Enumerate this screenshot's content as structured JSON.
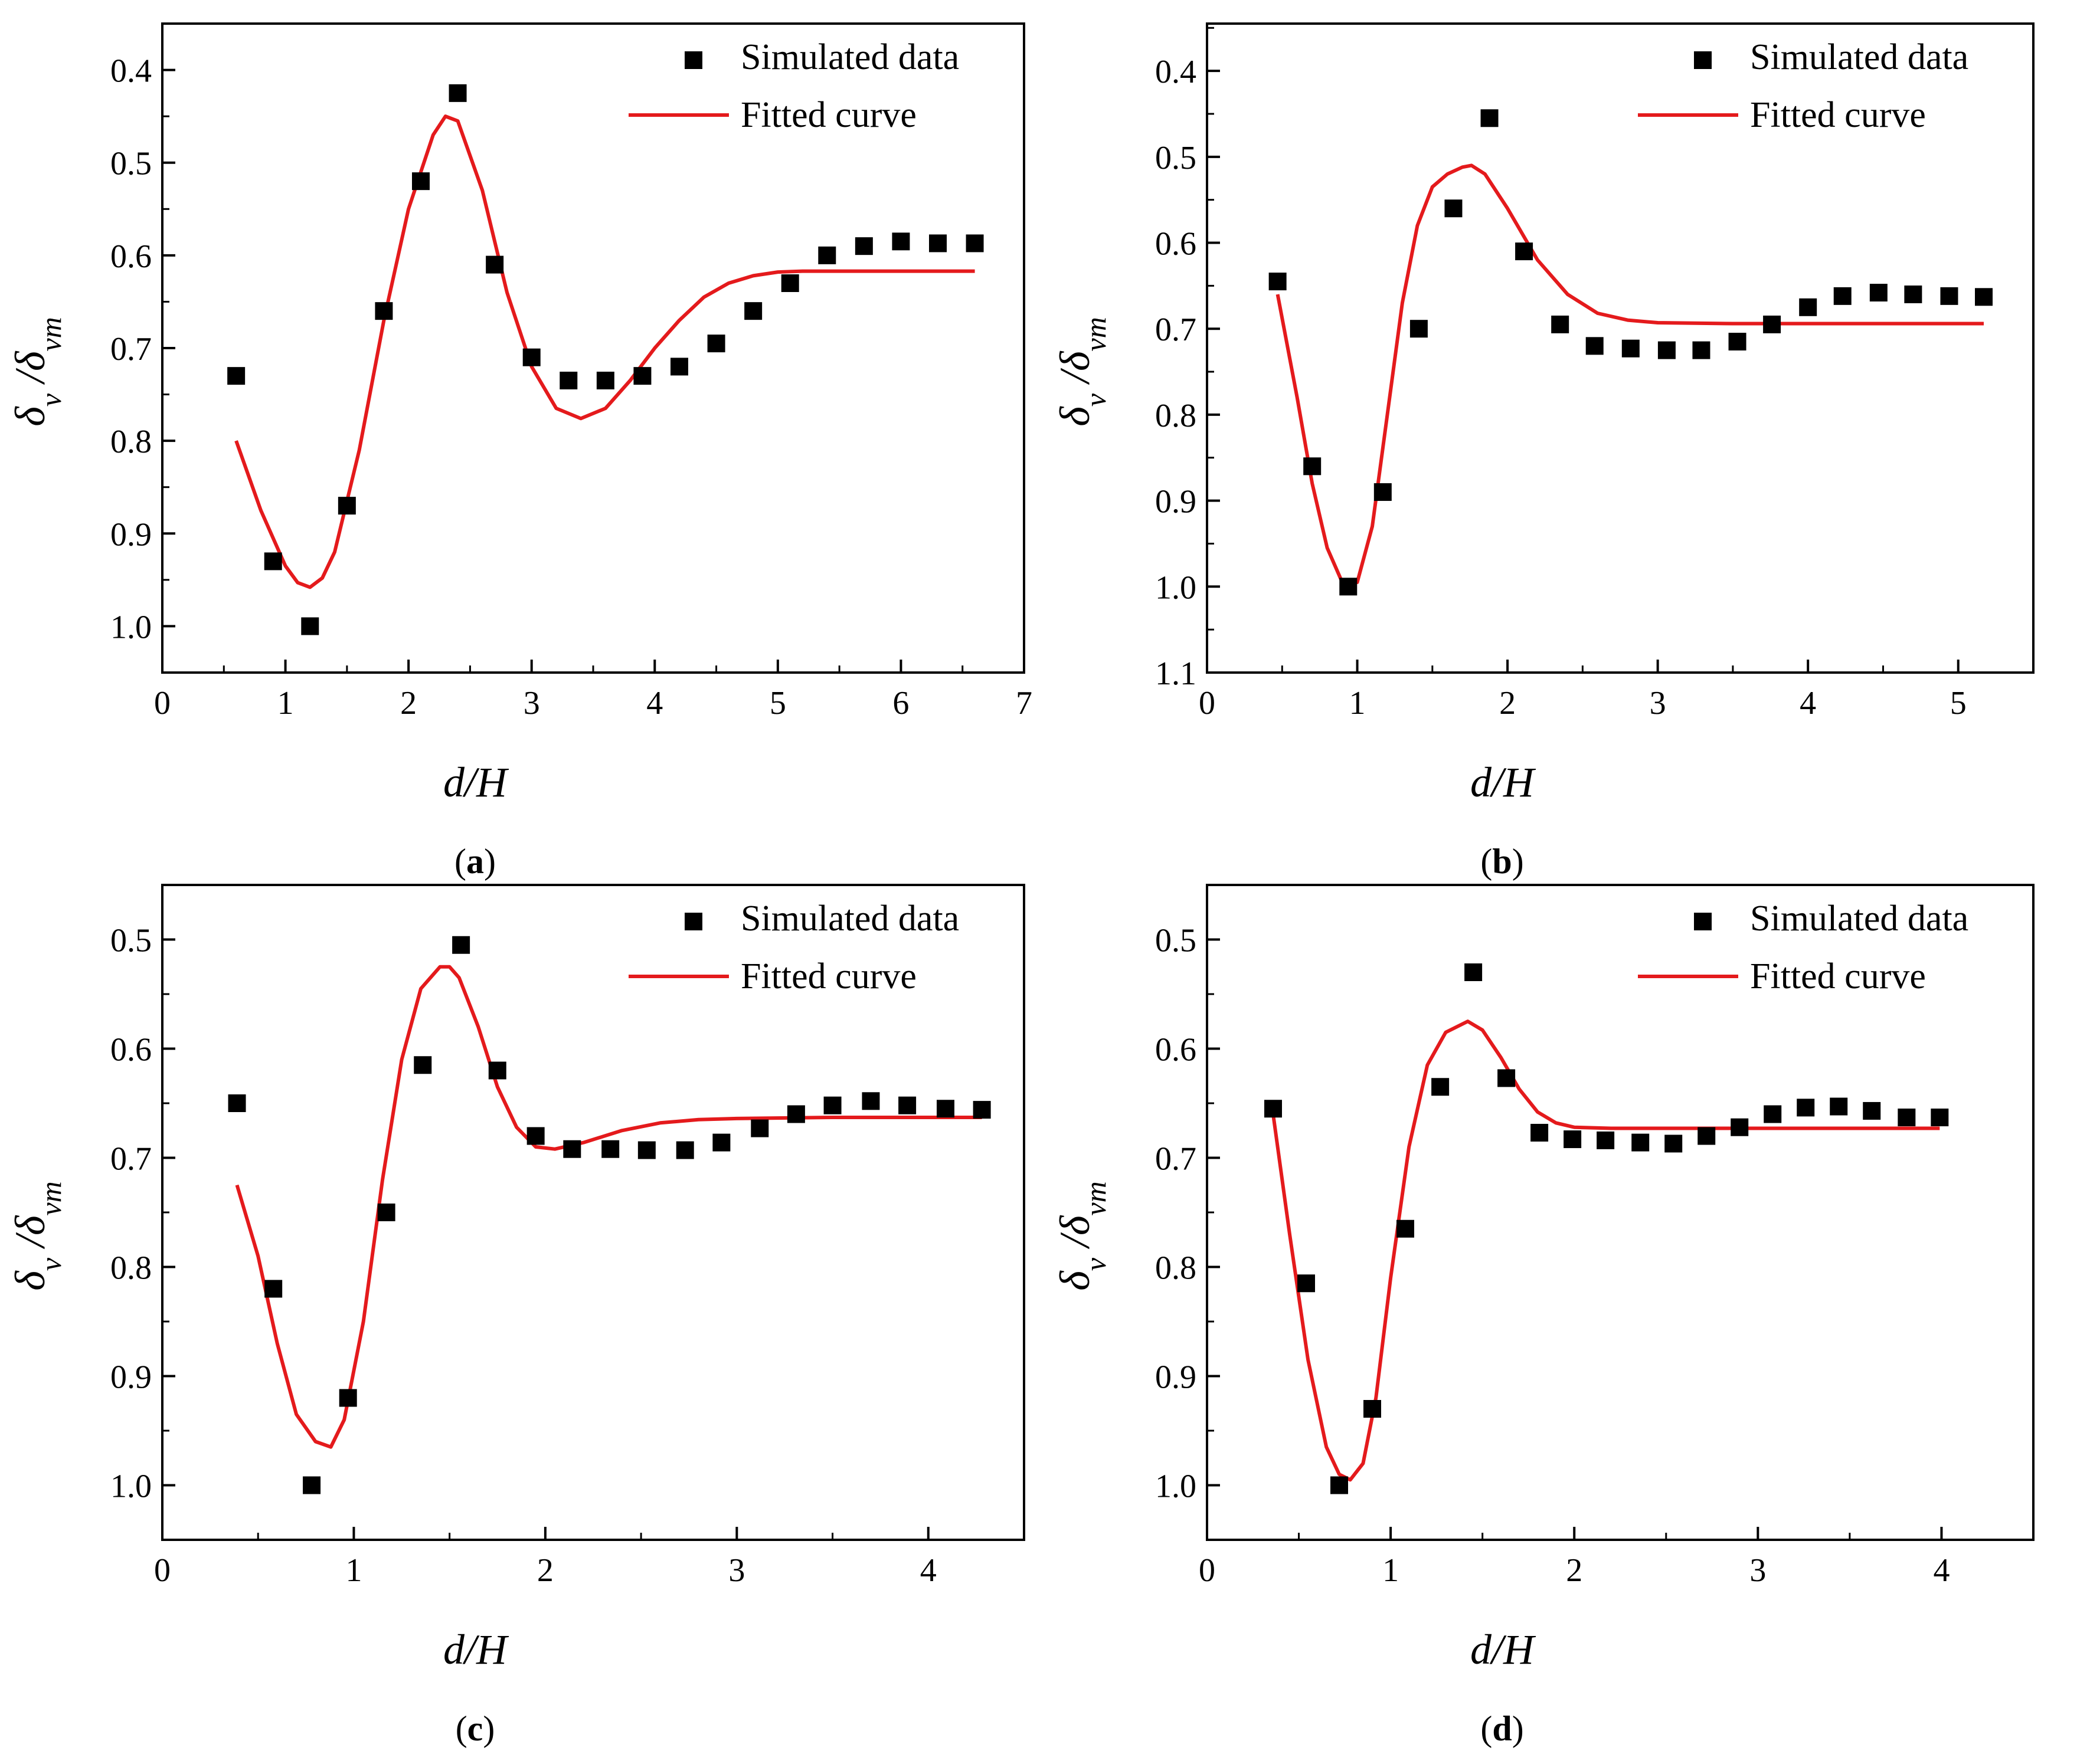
{
  "figure": {
    "panel_labels": [
      "(a)",
      "(b)",
      "(c)",
      "(d)"
    ]
  },
  "colors": {
    "fit": "#e41a1c",
    "points": "#000000",
    "axis": "#000000"
  },
  "legend": {
    "points_label": "Simulated data",
    "fit_label": "Fitted curve"
  },
  "chart_data": [
    {
      "id": "a",
      "type": "scatter",
      "panel_letter": "a",
      "xlabel": "d/H",
      "ylabel": "δv /δvm",
      "xlim": [
        0,
        7
      ],
      "ylim": [
        0.35,
        1.05
      ],
      "y_reversed": true,
      "xticks": [
        0,
        1,
        2,
        3,
        4,
        5,
        6,
        7
      ],
      "xtick_labels": [
        "0",
        "1",
        "2",
        "3",
        "4",
        "5",
        "6",
        "7"
      ],
      "yticks": [
        0.4,
        0.5,
        0.6,
        0.7,
        0.8,
        0.9,
        1.0
      ],
      "ytick_labels": [
        "0.4",
        "0.5",
        "0.6",
        "0.7",
        "0.8",
        "0.9",
        "1.0"
      ],
      "series": [
        {
          "name": "Simulated data",
          "kind": "points",
          "x": [
            0.6,
            0.9,
            1.2,
            1.5,
            1.8,
            2.1,
            2.4,
            2.7,
            3.0,
            3.3,
            3.6,
            3.9,
            4.2,
            4.5,
            4.8,
            5.1,
            5.4,
            5.7,
            6.0,
            6.3,
            6.6
          ],
          "y": [
            0.73,
            0.93,
            1.0,
            0.87,
            0.66,
            0.52,
            0.425,
            0.61,
            0.71,
            0.735,
            0.735,
            0.73,
            0.72,
            0.695,
            0.66,
            0.63,
            0.6,
            0.59,
            0.585,
            0.587,
            0.587
          ]
        },
        {
          "name": "Fitted curve",
          "kind": "line",
          "x": [
            0.6,
            0.8,
            1.0,
            1.1,
            1.2,
            1.3,
            1.4,
            1.6,
            1.8,
            2.0,
            2.2,
            2.3,
            2.4,
            2.6,
            2.8,
            3.0,
            3.2,
            3.4,
            3.6,
            3.8,
            4.0,
            4.2,
            4.4,
            4.6,
            4.8,
            5.0,
            5.2,
            5.5,
            6.0,
            6.6
          ],
          "y": [
            0.8,
            0.875,
            0.935,
            0.953,
            0.958,
            0.948,
            0.92,
            0.81,
            0.67,
            0.55,
            0.47,
            0.45,
            0.455,
            0.53,
            0.64,
            0.72,
            0.765,
            0.776,
            0.765,
            0.735,
            0.7,
            0.67,
            0.645,
            0.63,
            0.622,
            0.618,
            0.617,
            0.617,
            0.617,
            0.617
          ]
        }
      ]
    },
    {
      "id": "b",
      "type": "scatter",
      "panel_letter": "b",
      "xlabel": "d/H",
      "ylabel": "δv /δvm",
      "xlim": [
        0,
        5.5
      ],
      "ylim": [
        0.345,
        1.1
      ],
      "y_reversed": true,
      "xticks": [
        0,
        1,
        2,
        3,
        4,
        5
      ],
      "xtick_labels": [
        "0",
        "1",
        "2",
        "3",
        "4",
        "5"
      ],
      "yticks": [
        0.4,
        0.5,
        0.6,
        0.7,
        0.8,
        0.9,
        1.0,
        1.1
      ],
      "ytick_labels": [
        "0.4",
        "0.5",
        "0.6",
        "0.7",
        "0.8",
        "0.9",
        "1.0",
        "1.1"
      ],
      "series": [
        {
          "name": "Simulated data",
          "kind": "points",
          "x": [
            0.47,
            0.7,
            0.94,
            1.17,
            1.41,
            1.64,
            1.88,
            2.11,
            2.35,
            2.58,
            2.82,
            3.06,
            3.29,
            3.53,
            3.76,
            4.0,
            4.23,
            4.47,
            4.7,
            4.94,
            5.17
          ],
          "y": [
            0.645,
            0.86,
            1.0,
            0.89,
            0.7,
            0.56,
            0.455,
            0.61,
            0.695,
            0.72,
            0.723,
            0.725,
            0.725,
            0.715,
            0.695,
            0.675,
            0.662,
            0.658,
            0.66,
            0.662,
            0.663
          ]
        },
        {
          "name": "Fitted curve",
          "kind": "line",
          "x": [
            0.47,
            0.6,
            0.7,
            0.8,
            0.9,
            1.0,
            1.1,
            1.2,
            1.3,
            1.4,
            1.5,
            1.6,
            1.7,
            1.76,
            1.85,
            2.0,
            2.2,
            2.4,
            2.6,
            2.8,
            3.0,
            3.5,
            4.0,
            4.5,
            5.17
          ],
          "y": [
            0.66,
            0.78,
            0.88,
            0.955,
            0.995,
            0.995,
            0.93,
            0.8,
            0.67,
            0.58,
            0.535,
            0.52,
            0.512,
            0.51,
            0.52,
            0.56,
            0.62,
            0.66,
            0.682,
            0.69,
            0.693,
            0.694,
            0.694,
            0.694,
            0.694
          ]
        }
      ]
    },
    {
      "id": "c",
      "type": "scatter",
      "panel_letter": "c",
      "xlabel": "d/H",
      "ylabel": "δv /δvm",
      "xlim": [
        0,
        4.5
      ],
      "ylim": [
        0.45,
        1.05
      ],
      "y_reversed": true,
      "xticks": [
        0,
        1,
        2,
        3,
        4
      ],
      "xtick_labels": [
        "0",
        "1",
        "2",
        "3",
        "4"
      ],
      "yticks": [
        0.5,
        0.6,
        0.7,
        0.8,
        0.9,
        1.0
      ],
      "ytick_labels": [
        "0.5",
        "0.6",
        "0.7",
        "0.8",
        "0.9",
        "1.0"
      ],
      "series": [
        {
          "name": "Simulated data",
          "kind": "points",
          "x": [
            0.39,
            0.58,
            0.78,
            0.97,
            1.17,
            1.36,
            1.56,
            1.75,
            1.95,
            2.14,
            2.34,
            2.53,
            2.73,
            2.92,
            3.12,
            3.31,
            3.5,
            3.7,
            3.89,
            4.09,
            4.28
          ],
          "y": [
            0.65,
            0.82,
            1.0,
            0.92,
            0.75,
            0.615,
            0.505,
            0.62,
            0.68,
            0.692,
            0.692,
            0.693,
            0.693,
            0.686,
            0.673,
            0.66,
            0.652,
            0.648,
            0.652,
            0.655,
            0.656
          ]
        },
        {
          "name": "Fitted curve",
          "kind": "line",
          "x": [
            0.39,
            0.5,
            0.6,
            0.7,
            0.8,
            0.88,
            0.95,
            1.05,
            1.15,
            1.25,
            1.35,
            1.45,
            1.5,
            1.55,
            1.65,
            1.75,
            1.85,
            1.95,
            2.05,
            2.2,
            2.4,
            2.6,
            2.8,
            3.0,
            3.5,
            4.28
          ],
          "y": [
            0.725,
            0.79,
            0.87,
            0.935,
            0.96,
            0.965,
            0.94,
            0.85,
            0.72,
            0.61,
            0.545,
            0.525,
            0.525,
            0.535,
            0.58,
            0.635,
            0.672,
            0.69,
            0.692,
            0.686,
            0.675,
            0.668,
            0.665,
            0.664,
            0.663,
            0.663
          ]
        }
      ]
    },
    {
      "id": "d",
      "type": "scatter",
      "panel_letter": "d",
      "xlabel": "d/H",
      "ylabel": "δv /δvm",
      "xlim": [
        0,
        4.5
      ],
      "ylim": [
        0.45,
        1.05
      ],
      "y_reversed": true,
      "xticks": [
        0,
        1,
        2,
        3,
        4
      ],
      "xtick_labels": [
        "0",
        "1",
        "2",
        "3",
        "4"
      ],
      "yticks": [
        0.5,
        0.6,
        0.7,
        0.8,
        0.9,
        1.0
      ],
      "ytick_labels": [
        "0.5",
        "0.6",
        "0.7",
        "0.8",
        "0.9",
        "1.0"
      ],
      "series": [
        {
          "name": "Simulated data",
          "kind": "points",
          "x": [
            0.36,
            0.54,
            0.72,
            0.9,
            1.08,
            1.27,
            1.45,
            1.63,
            1.81,
            1.99,
            2.17,
            2.36,
            2.54,
            2.72,
            2.9,
            3.08,
            3.26,
            3.44,
            3.62,
            3.81,
            3.99
          ],
          "y": [
            0.655,
            0.815,
            1.0,
            0.93,
            0.765,
            0.635,
            0.53,
            0.627,
            0.677,
            0.683,
            0.684,
            0.686,
            0.687,
            0.68,
            0.672,
            0.66,
            0.654,
            0.653,
            0.657,
            0.663,
            0.663
          ]
        },
        {
          "name": "Fitted curve",
          "kind": "line",
          "x": [
            0.36,
            0.45,
            0.55,
            0.65,
            0.72,
            0.78,
            0.85,
            0.92,
            1.0,
            1.1,
            1.2,
            1.3,
            1.42,
            1.5,
            1.6,
            1.7,
            1.8,
            1.9,
            2.0,
            2.2,
            2.5,
            3.0,
            3.5,
            3.99
          ],
          "y": [
            0.66,
            0.77,
            0.885,
            0.965,
            0.99,
            0.995,
            0.98,
            0.92,
            0.81,
            0.69,
            0.615,
            0.585,
            0.575,
            0.583,
            0.608,
            0.637,
            0.658,
            0.668,
            0.672,
            0.673,
            0.673,
            0.673,
            0.673,
            0.673
          ]
        }
      ]
    }
  ]
}
